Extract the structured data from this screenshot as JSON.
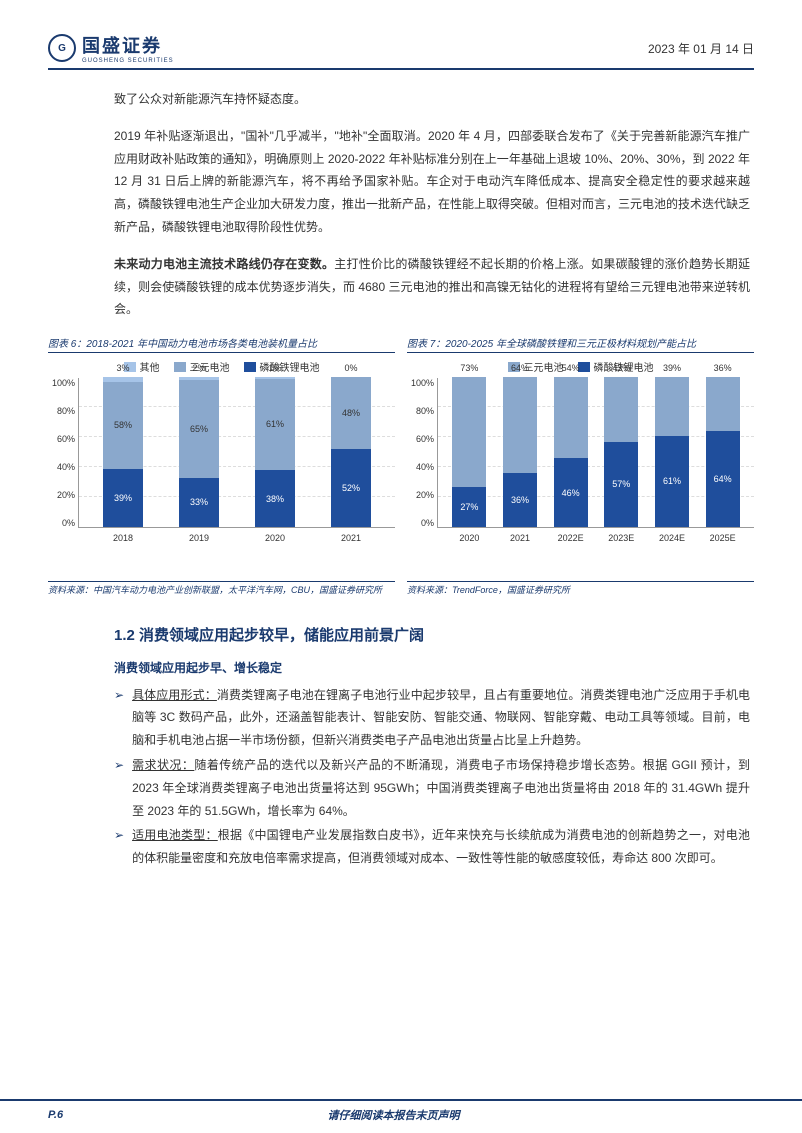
{
  "header": {
    "company": "国盛证券",
    "company_sub": "GUOSHENG SECURITIES",
    "date": "2023 年 01 月 14 日"
  },
  "paragraphs": {
    "p1": "致了公众对新能源汽车持怀疑态度。",
    "p2": "2019 年补贴逐渐退出，\"国补\"几乎减半，\"地补\"全面取消。2020 年 4 月，四部委联合发布了《关于完善新能源汽车推广应用财政补贴政策的通知》，明确原则上 2020-2022 年补贴标准分别在上一年基础上退坡 10%、20%、30%，到 2022 年 12 月 31 日后上牌的新能源汽车，将不再给予国家补贴。车企对于电动汽车降低成本、提高安全稳定性的要求越来越高，磷酸铁锂电池生产企业加大研发力度，推出一批新产品，在性能上取得突破。但相对而言，三元电池的技术迭代缺乏新产品，磷酸铁锂电池取得阶段性优势。",
    "p3_bold": "未来动力电池主流技术路线仍存在变数。",
    "p3_rest": "主打性价比的磷酸铁锂经不起长期的价格上涨。如果碳酸锂的涨价趋势长期延续，则会使磷酸铁锂的成本优势逐步消失，而 4680 三元电池的推出和高镍无钴化的进程将有望给三元锂电池带来逆转机会。"
  },
  "chart6": {
    "title": "图表 6：2018-2021 年中国动力电池市场各类电池装机量占比",
    "legend": [
      {
        "label": "其他",
        "color": "#a6c4e8"
      },
      {
        "label": "三元电池",
        "color": "#8aa8cc"
      },
      {
        "label": "磷酸铁锂电池",
        "color": "#1f4e9c"
      }
    ],
    "ylim": [
      0,
      100
    ],
    "ytick_step": 20,
    "yticks": [
      "100%",
      "80%",
      "60%",
      "40%",
      "20%",
      "0%"
    ],
    "categories": [
      "2018",
      "2019",
      "2020",
      "2021"
    ],
    "series": {
      "other": [
        3,
        2,
        1,
        0
      ],
      "ternary": [
        58,
        65,
        61,
        48
      ],
      "lfp": [
        39,
        33,
        38,
        52
      ]
    },
    "labels": {
      "other": [
        "3%",
        "2%",
        "1%",
        "0%"
      ],
      "ternary": [
        "58%",
        "65%",
        "61%",
        "48%"
      ],
      "lfp": [
        "39%",
        "33%",
        "38%",
        "52%"
      ]
    },
    "source": "资料来源：中国汽车动力电池产业创新联盟，太平洋汽车网，CBU，国盛证券研究所"
  },
  "chart7": {
    "title": "图表 7：2020-2025 年全球磷酸铁锂和三元正极材料规划产能占比",
    "legend": [
      {
        "label": "三元电池",
        "color": "#8aa8cc"
      },
      {
        "label": "磷酸铁锂电池",
        "color": "#1f4e9c"
      }
    ],
    "ylim": [
      0,
      100
    ],
    "ytick_step": 20,
    "yticks": [
      "100%",
      "80%",
      "60%",
      "40%",
      "20%",
      "0%"
    ],
    "categories": [
      "2020",
      "2021",
      "2022E",
      "2023E",
      "2024E",
      "2025E"
    ],
    "series": {
      "ternary": [
        73,
        64,
        54,
        43,
        39,
        36
      ],
      "lfp": [
        27,
        36,
        46,
        57,
        61,
        64
      ]
    },
    "labels": {
      "ternary": [
        "73%",
        "64%",
        "54%",
        "43%",
        "39%",
        "36%"
      ],
      "lfp": [
        "27%",
        "36%",
        "46%",
        "57%",
        "61%",
        "64%"
      ]
    },
    "source": "资料来源：TrendForce，国盛证券研究所"
  },
  "section": {
    "heading": "1.2 消费领域应用起步较早，储能应用前景广阔",
    "sub": "消费领域应用起步早、增长稳定",
    "bullets": [
      {
        "u": "具体应用形式：",
        "t": "消费类锂离子电池在锂离子电池行业中起步较早，且占有重要地位。消费类锂电池广泛应用于手机电脑等 3C 数码产品，此外，还涵盖智能表计、智能安防、智能交通、物联网、智能穿戴、电动工具等领域。目前，电脑和手机电池占据一半市场份额，但新兴消费类电子产品电池出货量占比呈上升趋势。"
      },
      {
        "u": "需求状况：",
        "t": "随着传统产品的迭代以及新兴产品的不断涌现，消费电子市场保持稳步增长态势。根据 GGII 预计，到 2023 年全球消费类锂离子电池出货量将达到 95GWh；中国消费类锂离子电池出货量将由 2018 年的 31.4GWh 提升至 2023 年的 51.5GWh，增长率为 64%。"
      },
      {
        "u": "适用电池类型：",
        "t": "根据《中国锂电产业发展指数白皮书》，近年来快充与长续航成为消费电池的创新趋势之一，对电池的体积能量密度和充放电倍率需求提高，但消费领域对成本、一致性等性能的敏感度较低，寿命达 800 次即可。"
      }
    ]
  },
  "footer": {
    "page": "P.6",
    "disclaimer": "请仔细阅读本报告末页声明"
  },
  "colors": {
    "brand": "#1a3a6e",
    "lfp": "#1f4e9c",
    "ternary": "#8aa8cc",
    "other": "#a6c4e8"
  }
}
